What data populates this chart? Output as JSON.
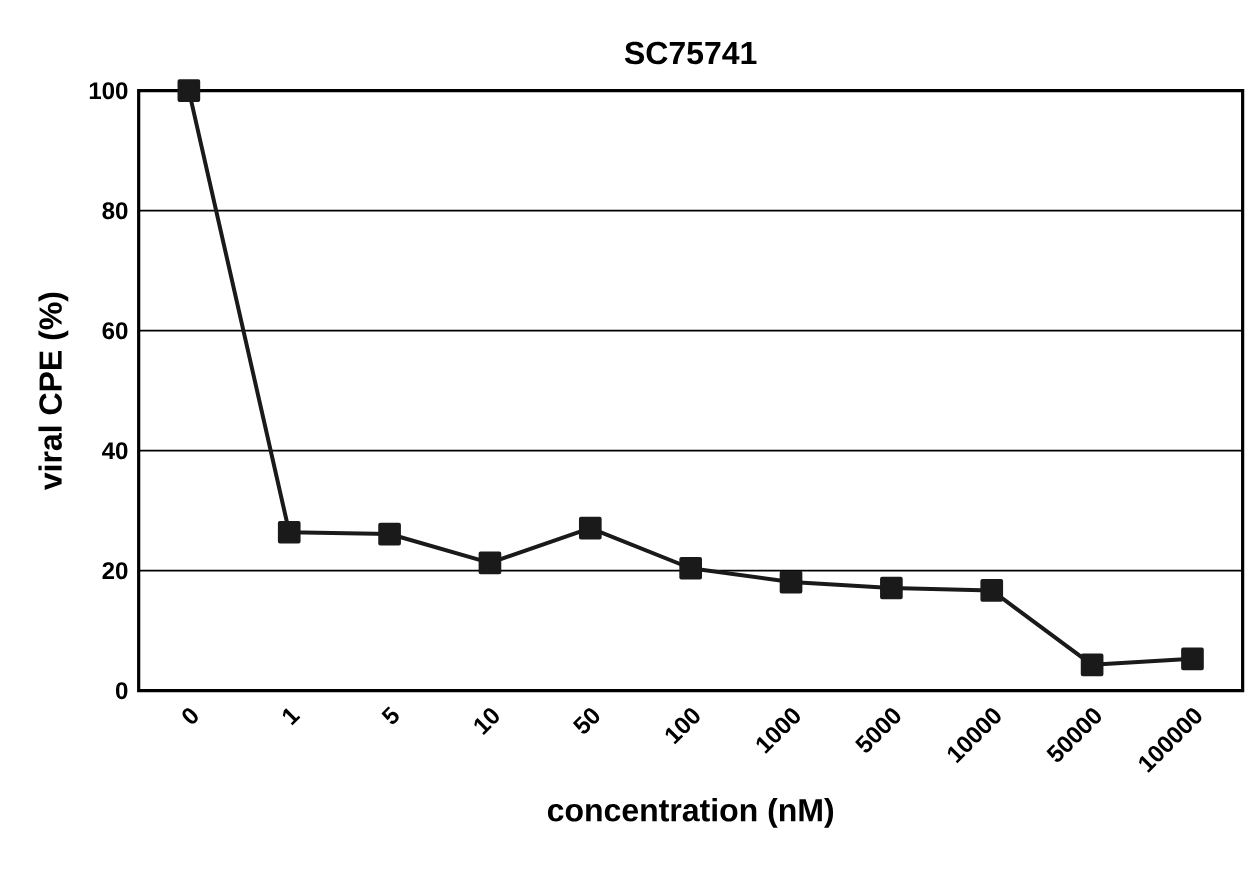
{
  "chart_data": {
    "type": "line",
    "title": "SC75741",
    "xlabel": "concentration (nM)",
    "ylabel": "viral CPE (%)",
    "categories": [
      "0",
      "1",
      "5",
      "10",
      "50",
      "100",
      "1000",
      "5000",
      "10000",
      "50000",
      "100000"
    ],
    "series": [
      {
        "color": "#1a1a1a",
        "values": [
          100,
          26.4,
          26.1,
          21.3,
          27.1,
          20.4,
          18.1,
          17.1,
          16.7,
          4.3,
          5.3
        ]
      }
    ],
    "ylim": [
      0,
      100
    ],
    "yticks": [
      0,
      20,
      40,
      60,
      80,
      100
    ],
    "grid": "y",
    "marker": "square",
    "line_style": "solid"
  }
}
